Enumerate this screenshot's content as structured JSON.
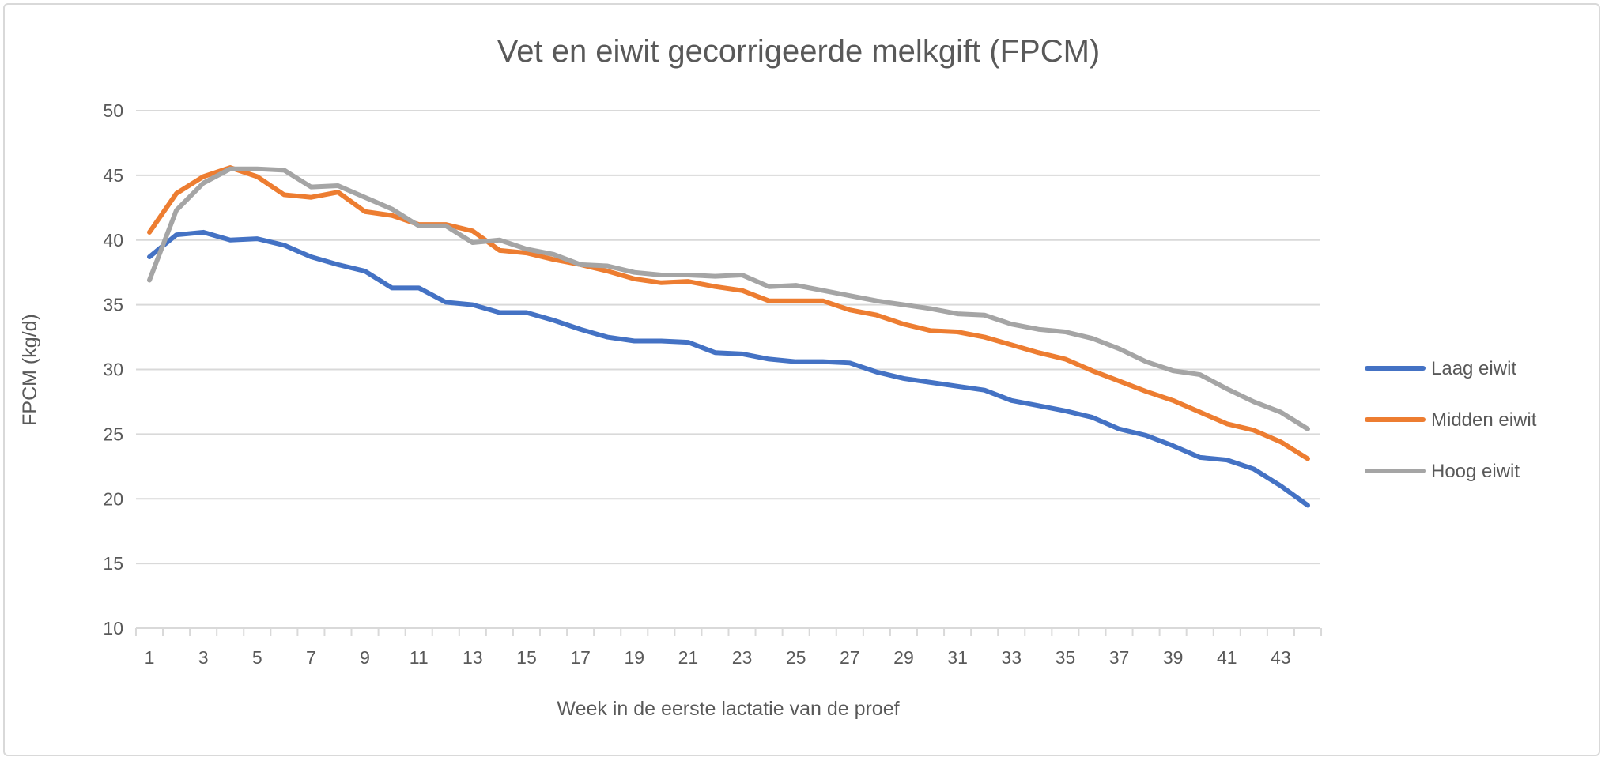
{
  "chart_data": {
    "type": "line",
    "title": "Vet en eiwit gecorrigeerde melkgift (FPCM)",
    "xlabel": "Week in de eerste lactatie van de proef",
    "ylabel": "FPCM (kg/d)",
    "ylim": [
      10,
      50
    ],
    "yticks": [
      "10",
      "15",
      "20",
      "25",
      "30",
      "35",
      "40",
      "45",
      "50"
    ],
    "xticks": [
      "1",
      "3",
      "5",
      "7",
      "9",
      "11",
      "13",
      "15",
      "17",
      "19",
      "21",
      "23",
      "25",
      "27",
      "29",
      "31",
      "33",
      "35",
      "37",
      "39",
      "41",
      "43"
    ],
    "x": [
      1,
      2,
      3,
      4,
      5,
      6,
      7,
      8,
      9,
      10,
      11,
      12,
      13,
      14,
      15,
      16,
      17,
      18,
      19,
      20,
      21,
      22,
      23,
      24,
      25,
      26,
      27,
      28,
      29,
      30,
      31,
      32,
      33,
      34,
      35,
      36,
      37,
      38,
      39,
      40,
      41,
      42,
      43,
      44
    ],
    "grid": true,
    "legend_position": "right",
    "series": [
      {
        "name": "Laag eiwit",
        "color": "#4472C4",
        "values": [
          38.7,
          40.4,
          40.6,
          40.0,
          40.1,
          39.6,
          38.7,
          38.1,
          37.6,
          36.3,
          36.3,
          35.2,
          35.0,
          34.4,
          34.4,
          33.8,
          33.1,
          32.5,
          32.2,
          32.2,
          32.1,
          31.3,
          31.2,
          30.8,
          30.6,
          30.6,
          30.5,
          29.8,
          29.3,
          29.0,
          28.7,
          28.4,
          27.6,
          27.2,
          26.8,
          26.3,
          25.4,
          24.9,
          24.1,
          23.2,
          23.0,
          22.3,
          21.0,
          19.5
        ]
      },
      {
        "name": "Midden eiwit",
        "color": "#ED7D31",
        "values": [
          40.6,
          43.6,
          44.9,
          45.6,
          44.9,
          43.5,
          43.3,
          43.7,
          42.2,
          41.9,
          41.2,
          41.2,
          40.7,
          39.2,
          39.0,
          38.5,
          38.1,
          37.6,
          37.0,
          36.7,
          36.8,
          36.4,
          36.1,
          35.3,
          35.3,
          35.3,
          34.6,
          34.2,
          33.5,
          33.0,
          32.9,
          32.5,
          31.9,
          31.3,
          30.8,
          29.9,
          29.1,
          28.3,
          27.6,
          26.7,
          25.8,
          25.3,
          24.4,
          23.1
        ]
      },
      {
        "name": "Hoog eiwit",
        "color": "#A5A5A5",
        "values": [
          36.9,
          42.3,
          44.4,
          45.5,
          45.5,
          45.4,
          44.1,
          44.2,
          43.3,
          42.4,
          41.1,
          41.1,
          39.8,
          40.0,
          39.3,
          38.9,
          38.1,
          38.0,
          37.5,
          37.3,
          37.3,
          37.2,
          37.3,
          36.4,
          36.5,
          36.1,
          35.7,
          35.3,
          35.0,
          34.7,
          34.3,
          34.2,
          33.5,
          33.1,
          32.9,
          32.4,
          31.6,
          30.6,
          29.9,
          29.6,
          28.5,
          27.5,
          26.7,
          25.4
        ]
      }
    ]
  }
}
